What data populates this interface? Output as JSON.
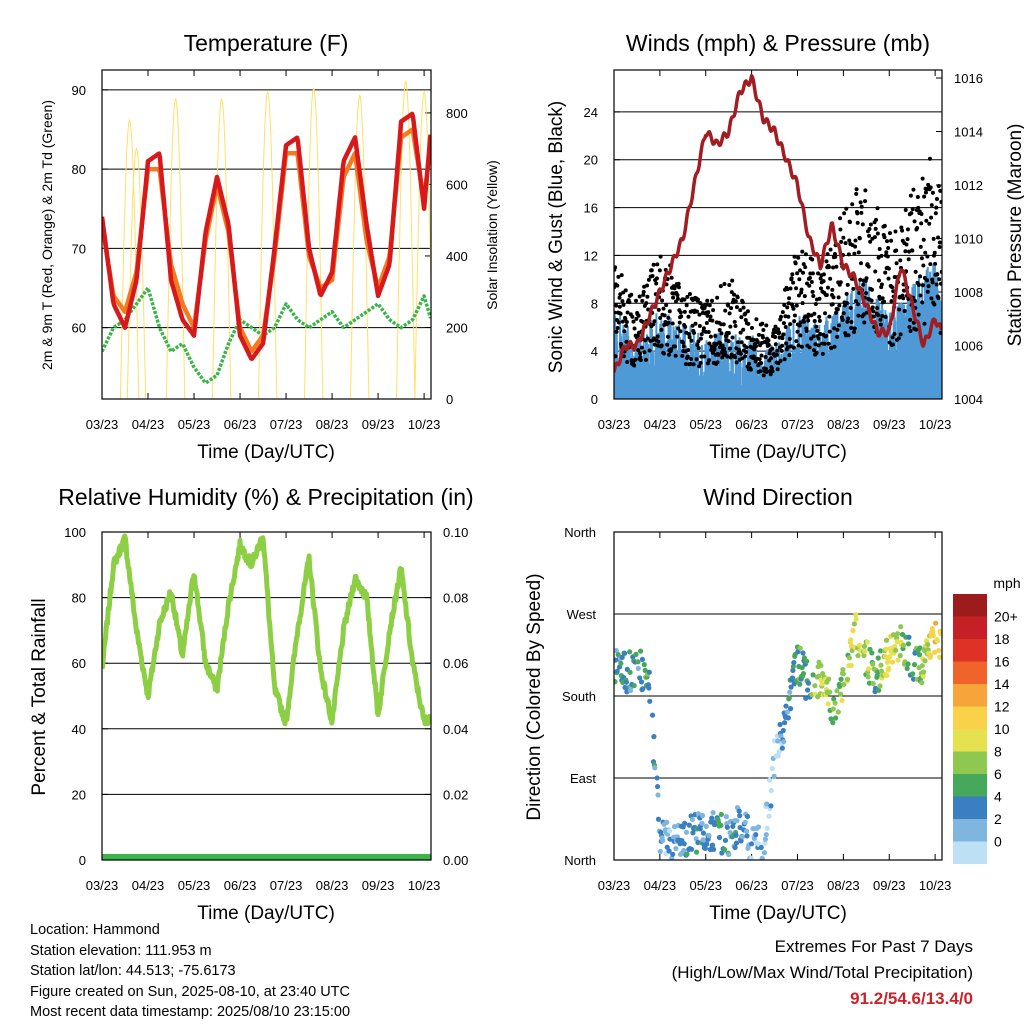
{
  "x_ticks": [
    "03/23",
    "04/23",
    "05/23",
    "06/23",
    "07/23",
    "08/23",
    "09/23",
    "10/23"
  ],
  "colors": {
    "temp_2m": "#d7191c",
    "temp_9m": "#f47a20",
    "dewpoint": "#3ab54a",
    "solar": "#ffe066",
    "wind": "#4f9ad6",
    "gust": "#000000",
    "pressure": "#a11d21",
    "rh": "#8ccf44",
    "rain": "#3ab54a"
  },
  "chart_data": [
    {
      "type": "line",
      "title": "Temperature (F)",
      "xlabel": "Time (Day/UTC)",
      "ylabel": "2m & 9m T (Red, Orange) & 2m Td (Green)",
      "y2label": "Solar Insolation (Yellow)",
      "ylim": [
        51,
        92.5
      ],
      "y_ticks": [
        60,
        70,
        80,
        90
      ],
      "y2lim": [
        0,
        920
      ],
      "y2_ticks": [
        0,
        200,
        400,
        600,
        800
      ],
      "grid": "horizontal",
      "series": [
        {
          "key": "t2m",
          "x": [
            0,
            0.25,
            0.5,
            0.75,
            1,
            1.25,
            1.5,
            1.75,
            2,
            2.25,
            2.5,
            2.75,
            3,
            3.25,
            3.5,
            3.75,
            4,
            4.25,
            4.5,
            4.75,
            5,
            5.25,
            5.5,
            5.75,
            6,
            6.25,
            6.5,
            6.75,
            7,
            7.15
          ],
          "values": [
            74,
            63,
            60,
            66,
            81,
            82,
            66,
            61,
            59,
            72,
            79,
            73,
            59,
            56,
            58,
            70,
            83,
            84,
            70,
            64,
            67,
            81,
            84,
            73,
            64,
            68,
            86,
            87,
            75,
            85
          ]
        },
        {
          "key": "t9m",
          "x": [
            0,
            0.25,
            0.5,
            0.75,
            1,
            1.25,
            1.5,
            1.75,
            2,
            2.25,
            2.5,
            2.75,
            3,
            3.25,
            3.5,
            3.75,
            4,
            4.25,
            4.5,
            4.75,
            5,
            5.25,
            5.5,
            5.75,
            6,
            6.25,
            6.5,
            6.75,
            7,
            7.15
          ],
          "values": [
            73,
            64,
            62,
            67,
            80,
            80,
            68,
            63,
            60,
            71,
            78,
            72,
            60,
            57,
            59,
            69,
            82,
            82,
            69,
            65,
            66,
            79,
            82,
            71,
            65,
            69,
            84,
            85,
            76,
            84
          ]
        },
        {
          "key": "td",
          "x": [
            0,
            0.25,
            0.5,
            0.75,
            1,
            1.25,
            1.5,
            1.75,
            2,
            2.25,
            2.5,
            2.75,
            3,
            3.25,
            3.5,
            3.75,
            4,
            4.25,
            4.5,
            4.75,
            5,
            5.25,
            5.5,
            5.75,
            6,
            6.25,
            6.5,
            6.75,
            7,
            7.15
          ],
          "values": [
            57,
            60,
            61,
            63,
            65,
            60,
            57,
            58,
            55,
            53,
            54,
            58,
            61,
            60,
            59,
            60,
            63,
            61,
            60,
            61,
            62,
            60,
            61,
            62,
            63,
            61,
            60,
            61,
            64,
            61
          ]
        },
        {
          "key": "solar",
          "axis": "y2",
          "peaks_x": [
            0.6,
            0.75,
            1.6,
            2.6,
            3.6,
            4.6,
            5.6,
            6.6,
            7.0
          ],
          "peaks": [
            780,
            700,
            840,
            840,
            860,
            870,
            850,
            890,
            860
          ]
        }
      ]
    },
    {
      "type": "scatter",
      "title": "Winds (mph) & Pressure (mb)",
      "xlabel": "Time (Day/UTC)",
      "ylabel": "Sonic Wind & Gust (Blue, Black)",
      "y2label": "Station Pressure (Maroon)",
      "ylim": [
        0,
        27.5
      ],
      "y_ticks": [
        0,
        4,
        8,
        12,
        16,
        20,
        24
      ],
      "y2lim": [
        1004,
        1016.3
      ],
      "y2_ticks": [
        1004,
        1006,
        1008,
        1010,
        1012,
        1014,
        1016
      ],
      "grid": "horizontal",
      "series": [
        {
          "key": "wind",
          "x": [
            0,
            0.5,
            1,
            1.5,
            2,
            2.5,
            3,
            3.5,
            4,
            4.5,
            5,
            5.5,
            6,
            6.5,
            7,
            7.15
          ],
          "values": [
            5,
            3,
            5,
            4,
            3,
            4,
            3,
            2,
            5,
            4,
            6,
            8,
            5,
            7,
            10,
            8
          ]
        },
        {
          "key": "gust",
          "x": [
            0,
            0.5,
            1,
            1.5,
            2,
            2.5,
            3,
            3.5,
            4,
            4.5,
            5,
            5.5,
            6,
            6.5,
            7,
            7.15
          ],
          "values": [
            10,
            7,
            11,
            8,
            7,
            9,
            6,
            5,
            12,
            9,
            14,
            16,
            12,
            15,
            18,
            14
          ]
        },
        {
          "key": "pressure",
          "axis": "y2",
          "x": [
            0,
            0.25,
            0.5,
            0.75,
            1,
            1.25,
            1.5,
            1.75,
            2,
            2.25,
            2.5,
            2.75,
            3,
            3.25,
            3.5,
            3.75,
            4,
            4.25,
            4.5,
            4.75,
            5,
            5.25,
            5.5,
            5.75,
            6,
            6.25,
            6.5,
            6.75,
            7,
            7.15
          ],
          "values": [
            1005,
            1006,
            1006,
            1007,
            1008,
            1009,
            1010,
            1012,
            1014,
            1013.5,
            1014,
            1015.5,
            1016,
            1014.5,
            1014,
            1013,
            1012,
            1010,
            1009,
            1010.5,
            1009,
            1008.5,
            1007.5,
            1006.5,
            1006.5,
            1009,
            1007.5,
            1006,
            1007,
            1006.5
          ]
        }
      ]
    },
    {
      "type": "line",
      "title": "Relative Humidity (%) & Precipitation (in)",
      "xlabel": "Time (Day/UTC)",
      "ylabel": "Percent & Total Rainfall",
      "ylim": [
        0,
        100
      ],
      "y_ticks": [
        0,
        20,
        40,
        60,
        80,
        100
      ],
      "y2lim": [
        0,
        0.1
      ],
      "y2_ticks": [
        "0.00",
        "0.02",
        "0.04",
        "0.06",
        "0.08",
        "0.10"
      ],
      "grid": "horizontal",
      "series": [
        {
          "key": "rh",
          "x": [
            0,
            0.25,
            0.5,
            0.75,
            1,
            1.25,
            1.5,
            1.75,
            2,
            2.25,
            2.5,
            2.75,
            3,
            3.25,
            3.5,
            3.75,
            4,
            4.25,
            4.5,
            4.75,
            5,
            5.25,
            5.5,
            5.75,
            6,
            6.25,
            6.5,
            6.75,
            7,
            7.15
          ],
          "values": [
            58,
            90,
            98,
            70,
            50,
            72,
            82,
            62,
            88,
            60,
            52,
            78,
            96,
            90,
            99,
            52,
            42,
            70,
            92,
            58,
            42,
            70,
            86,
            80,
            44,
            70,
            89,
            60,
            42,
            44
          ]
        },
        {
          "key": "rain",
          "x": [
            0,
            7.15
          ],
          "values": [
            0,
            0
          ]
        }
      ]
    },
    {
      "type": "scatter",
      "title": "Wind Direction",
      "xlabel": "Time (Day/UTC)",
      "ylabel": "Direction (Colored By Speed)",
      "y_ticks": [
        "North",
        "East",
        "South",
        "West",
        "North"
      ],
      "ylim": [
        0,
        360
      ],
      "grid": "horizontal",
      "series": [
        {
          "key": "direction",
          "x": [
            0,
            0.25,
            0.5,
            0.75,
            1,
            1.25,
            1.5,
            1.75,
            2,
            2.25,
            2.5,
            2.75,
            3,
            3.25,
            3.5,
            3.75,
            4,
            4.25,
            4.5,
            4.75,
            5,
            5.25,
            5.5,
            5.75,
            6,
            6.25,
            6.5,
            6.75,
            7,
            7.15
          ],
          "values": [
            210,
            205,
            210,
            200,
            30,
            15,
            20,
            30,
            35,
            30,
            25,
            40,
            20,
            15,
            110,
            150,
            220,
            190,
            200,
            170,
            190,
            250,
            220,
            200,
            230,
            240,
            220,
            210,
            250,
            240
          ],
          "speeds": [
            4,
            5,
            4,
            6,
            3,
            2,
            3,
            4,
            3,
            5,
            4,
            3,
            2,
            1,
            2,
            3,
            6,
            5,
            9,
            7,
            8,
            10,
            8,
            6,
            11,
            9,
            5,
            8,
            12,
            10
          ]
        }
      ],
      "legend": {
        "title": "mph",
        "placement": "right",
        "labels": [
          "20+",
          "18",
          "16",
          "14",
          "12",
          "10",
          "8",
          "6",
          "4",
          "2",
          "0"
        ],
        "colors": [
          "#9e1b1d",
          "#c62027",
          "#de3226",
          "#f0632b",
          "#f7a43a",
          "#fad24a",
          "#e6e24f",
          "#8ec851",
          "#46a85a",
          "#3a7fc1",
          "#7fb6e0",
          "#bde0f5"
        ]
      }
    }
  ],
  "footer": {
    "location": "Location: Hammond",
    "elevation": "Station elevation: 111.953 m",
    "latlon": "Station lat/lon: 44.513; -75.6173",
    "created": "Figure created on Sun, 2025-08-10, at 23:40 UTC",
    "recent": "Most recent data timestamp: 2025/08/10 23:15:00"
  },
  "extremes": {
    "line1": "Extremes For Past 7 Days",
    "line2": "(High/Low/Max Wind/Total Precipitation)",
    "value": "91.2/54.6/13.4/0"
  }
}
